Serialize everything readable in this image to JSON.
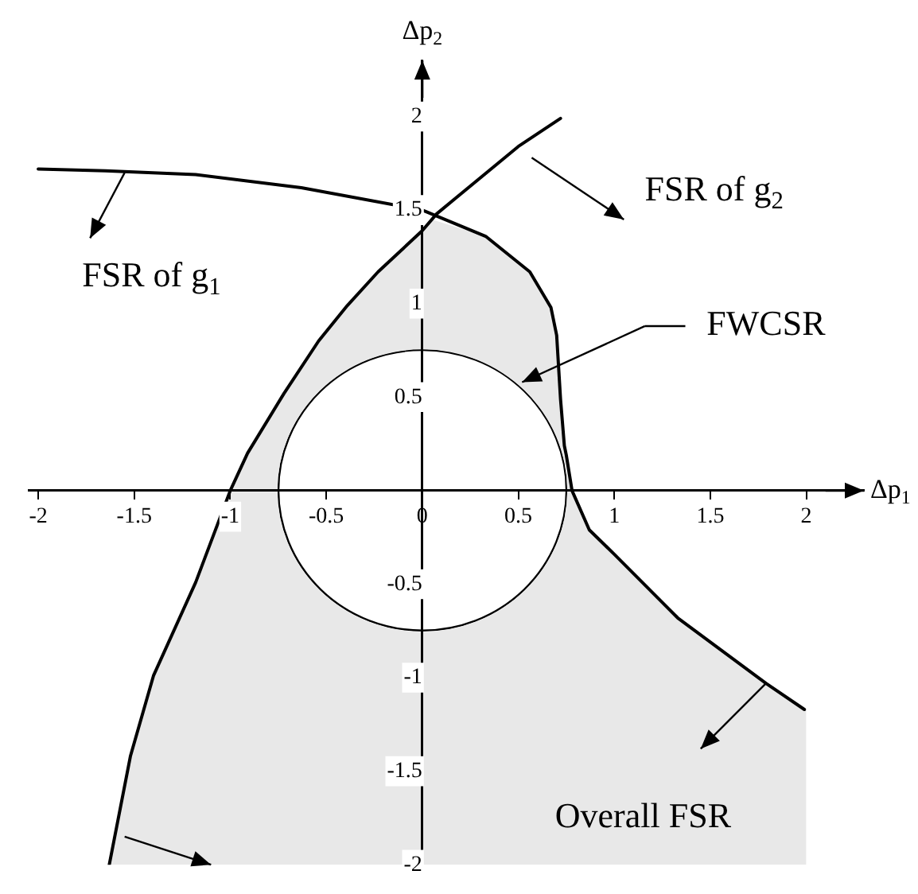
{
  "chart_data": {
    "type": "line",
    "xlabel": "Δp$_{1}$",
    "ylabel": "Δp$_{2}$",
    "xlim": [
      -2.05,
      2.3
    ],
    "ylim": [
      -2,
      2.3
    ],
    "xticks": [
      -2,
      -1.5,
      -1,
      -0.5,
      0,
      0.5,
      1,
      1.5,
      2
    ],
    "yticks": [
      -2,
      -1.5,
      -1,
      -0.5,
      0.5,
      1,
      1.5,
      2
    ],
    "grid": false,
    "legend": false,
    "marker": "none",
    "line_style": "solid",
    "series": [
      {
        "type": "area",
        "color": "#e8e8e8",
        "x": [
          -1.63,
          -1.52,
          -1.4,
          -1.18,
          -1.0,
          -0.91,
          -0.72,
          -0.54,
          -0.39,
          -0.23,
          0,
          0.05,
          0.33,
          0.56,
          0.67,
          0.7,
          0.72,
          0.74,
          0.75,
          0.78,
          0.87,
          1.0,
          1.33,
          1.79,
          1.99,
          2,
          2
        ],
        "values": [
          -2,
          -1.42,
          -0.99,
          -0.49,
          0,
          0.2,
          0.52,
          0.8,
          0.99,
          1.17,
          1.39,
          1.45,
          1.36,
          1.17,
          0.98,
          0.83,
          0.49,
          0.24,
          0.19,
          0,
          -0.21,
          -0.34,
          -0.68,
          -1.03,
          -1.17,
          -1.17,
          -2
        ]
      },
      {
        "type": "line",
        "color": "#000000",
        "x": [
          -2,
          -1.65,
          -1.18,
          -0.63,
          0,
          0.33,
          0.56,
          0.67,
          0.7,
          0.72,
          0.74,
          0.75,
          0.78,
          0.87,
          1.0,
          1.33,
          1.79,
          1.99
        ],
        "values": [
          1.72,
          1.71,
          1.69,
          1.62,
          1.5,
          1.36,
          1.17,
          0.98,
          0.83,
          0.49,
          0.24,
          0.19,
          0,
          -0.21,
          -0.34,
          -0.68,
          -1.03,
          -1.17
        ]
      },
      {
        "type": "line",
        "color": "#000000",
        "x": [
          -1.63,
          -1.52,
          -1.4,
          -1.18,
          -1.0,
          -0.91,
          -0.72,
          -0.54,
          -0.39,
          -0.23,
          0,
          0.075,
          0.5,
          0.72
        ],
        "values": [
          -2,
          -1.42,
          -0.99,
          -0.49,
          0,
          0.2,
          0.52,
          0.8,
          0.99,
          1.17,
          1.39,
          1.48,
          1.84,
          1.99
        ]
      }
    ],
    "annotations": [
      "FSR of g$_{1}$",
      "FSR of g$_{2}$",
      "FWCSR",
      "Overall FSR"
    ]
  }
}
